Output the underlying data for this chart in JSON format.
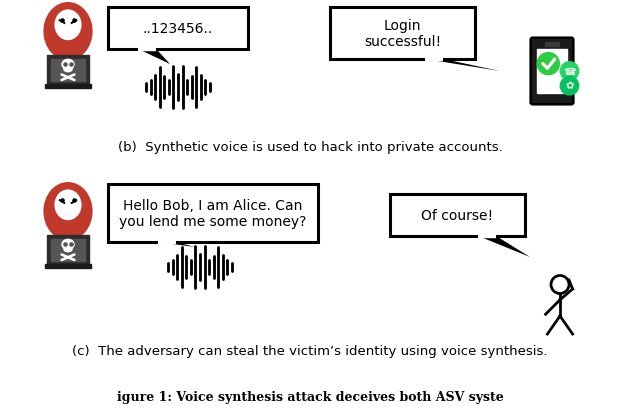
{
  "bg_color": "#ffffff",
  "fig_width": 6.2,
  "fig_height": 4.1,
  "dpi": 100,
  "caption_b": "(b)  Synthetic voice is used to hack into private accounts.",
  "caption_c": "(c)  The adversary can steal the victim’s identity using voice synthesis.",
  "footer": "igure 1: Voice synthesis attack deceives both ASV syste",
  "bubble_b_hacker": "..123456..",
  "bubble_b_phone": "Login\nsuccessful!",
  "bubble_c_hacker": "Hello Bob, I am Alice. Can\nyou lend me some money?",
  "bubble_c_person": "Of course!",
  "waveform_color": "#000000",
  "hacker_red": "#c0392b",
  "hacker_dark": "#2c2c2c",
  "phone_color": "#1a1a1a",
  "screen_white": "#ffffff",
  "green_check": "#2ecc40",
  "green_wa": "#25d366",
  "green_wc": "#07c160",
  "lw_bubble": 2.0
}
